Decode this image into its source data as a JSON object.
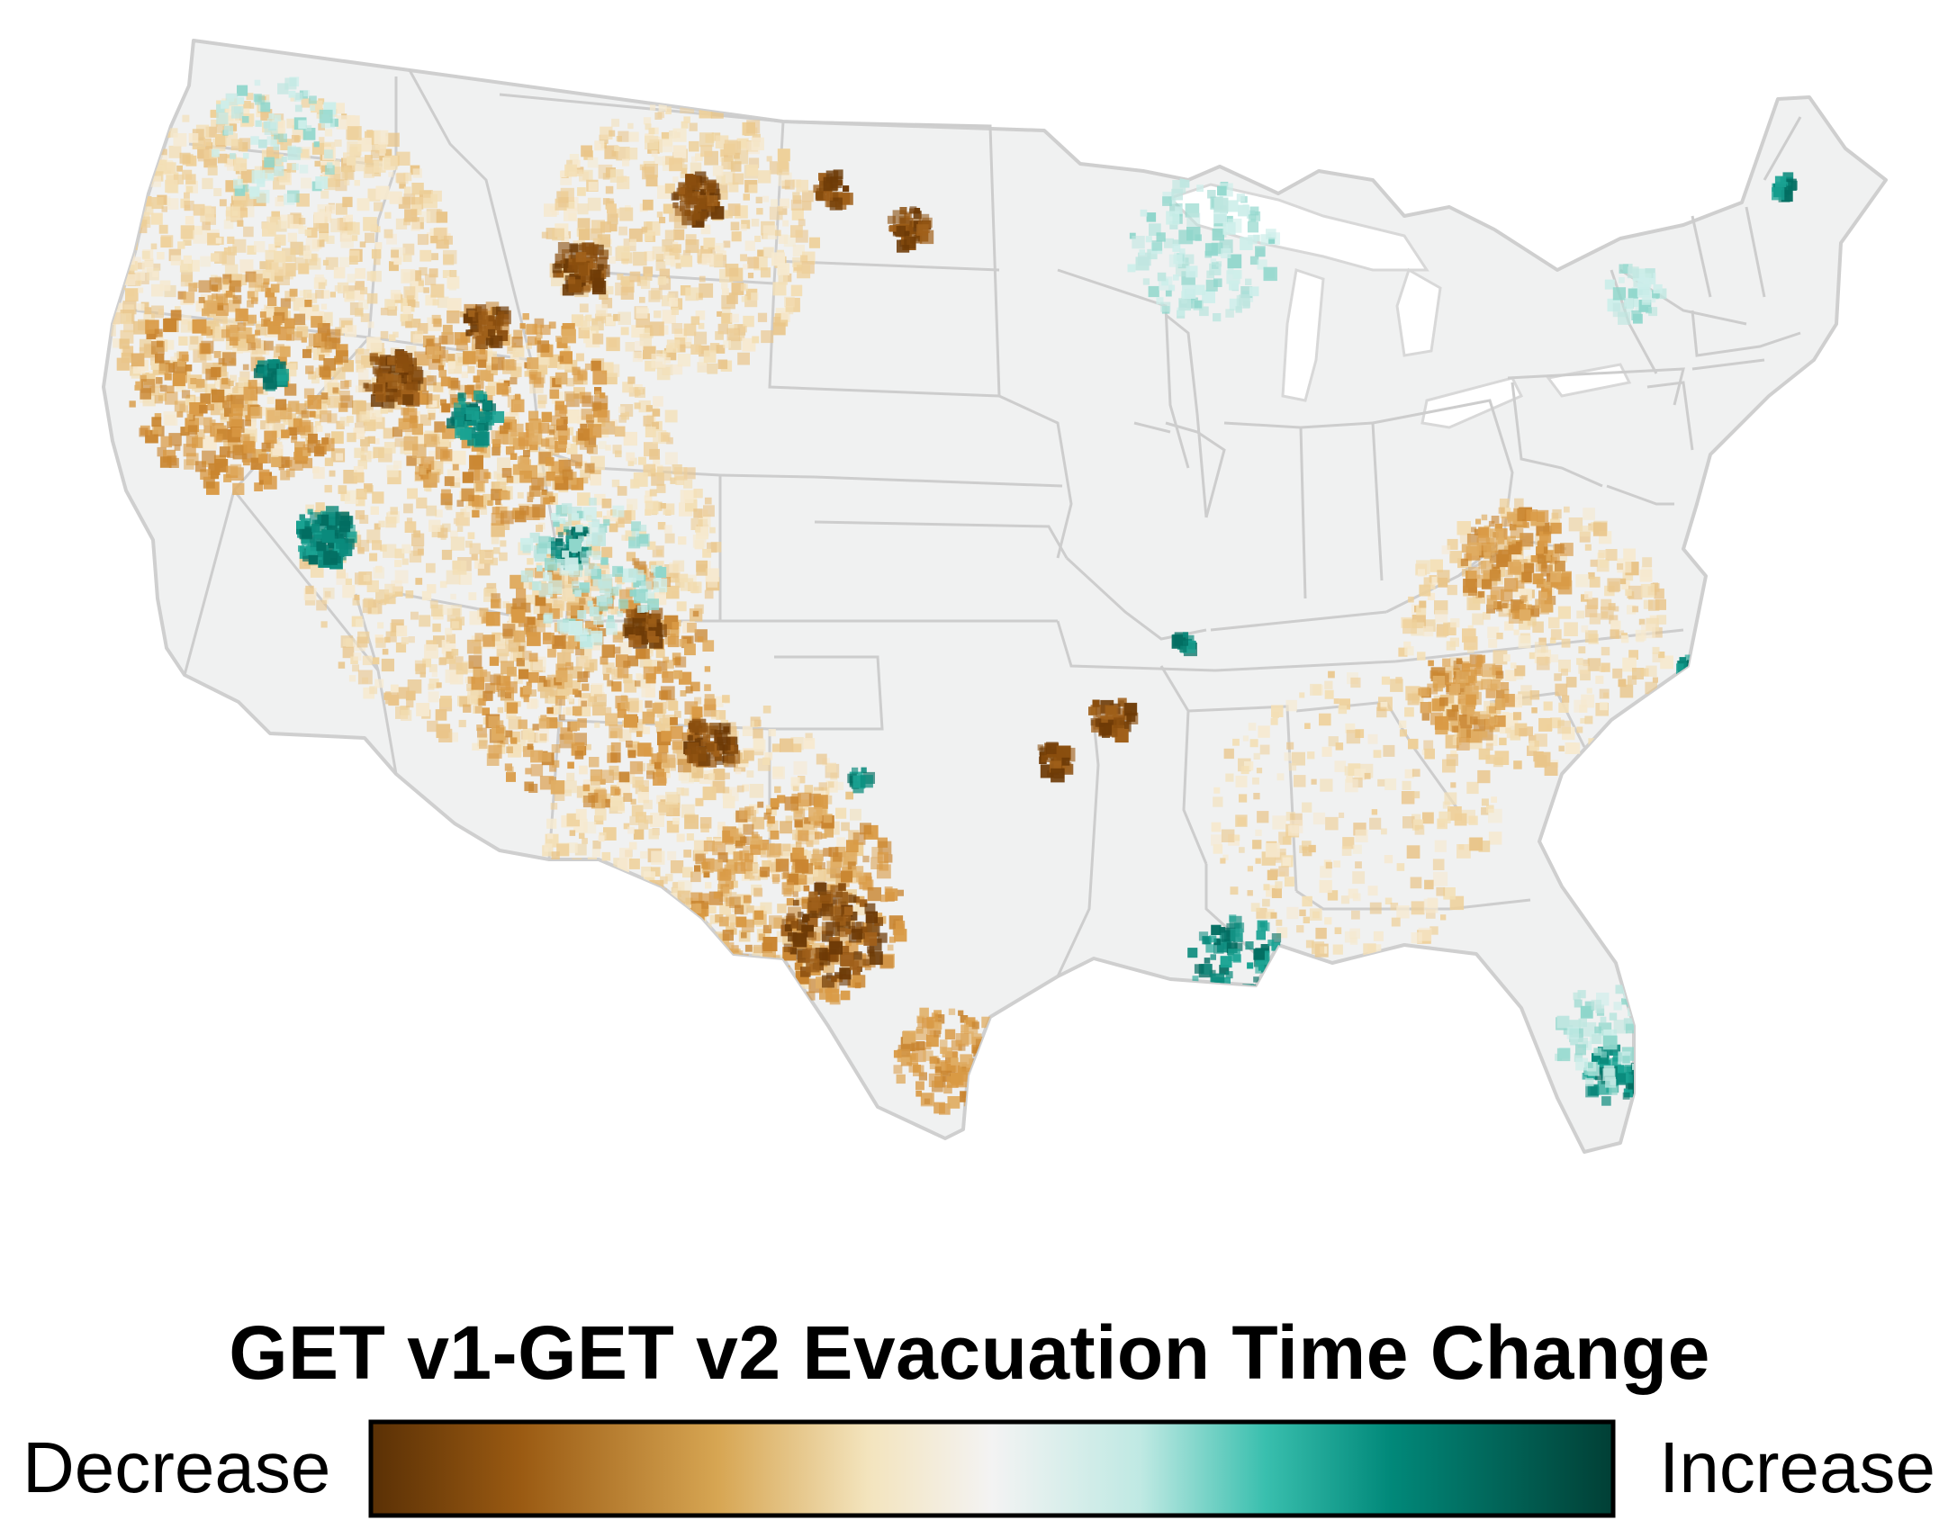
{
  "map": {
    "region": "Contiguous United States",
    "basemap_fill": "#f0f1f1",
    "border_color": "#cfcfcf",
    "layer": "GET v1-GET v2 Evacuation Time Change"
  },
  "legend": {
    "title": "GET v1-GET v2 Evacuation Time Change",
    "low_label": "Decrease",
    "high_label": "Increase",
    "colors": [
      "#5a3005",
      "#9a5a12",
      "#d7a653",
      "#f3e4bd",
      "#f3f3f3",
      "#bfe9e3",
      "#39bfae",
      "#01897a",
      "#013f35"
    ]
  }
}
